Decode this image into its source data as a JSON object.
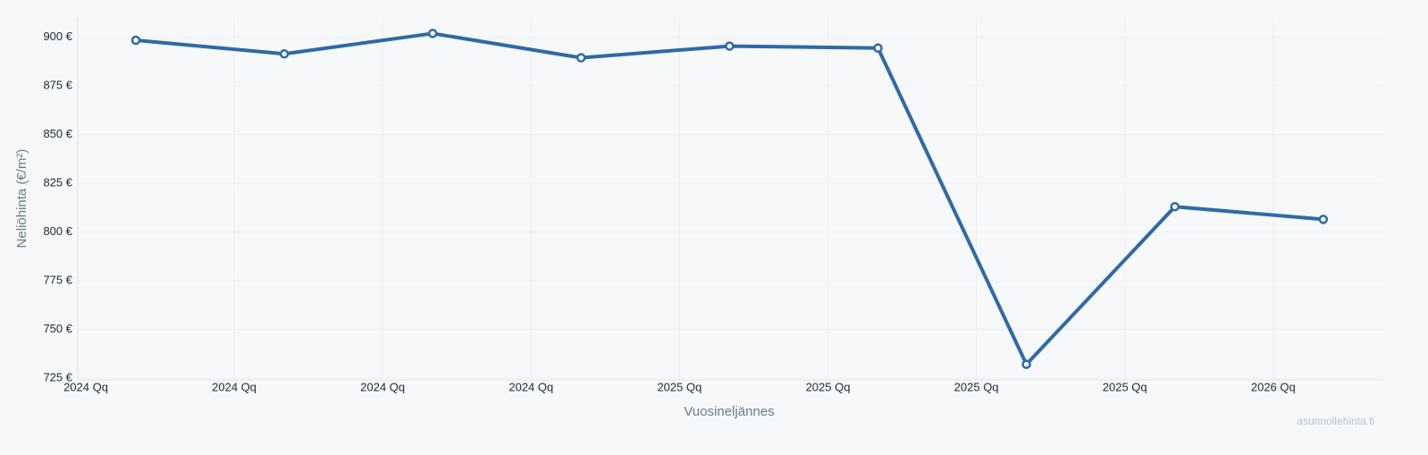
{
  "chart_data": {
    "type": "line",
    "y_label": "Neliöhinta (€/m²)",
    "x_label": "Vuosineljännes",
    "watermark": "asunnollehinta.fi",
    "categories": [
      "2024 Qq",
      "2024 Qq",
      "2024 Qq",
      "2024 Qq",
      "2025 Qq",
      "2025 Qq",
      "2025 Qq",
      "2025 Qq",
      "2026 Qq"
    ],
    "series": [
      {
        "name": "Neliöhinta",
        "color": "#2e6aa6",
        "values": [
          898.5,
          891.5,
          902,
          889.5,
          895.5,
          894.5,
          732,
          813,
          806.5
        ]
      }
    ],
    "ylim": [
      724,
      910
    ],
    "yticks": [
      {
        "value": 725,
        "label": "725 €"
      },
      {
        "value": 750,
        "label": "750 €"
      },
      {
        "value": 775,
        "label": "775 €"
      },
      {
        "value": 800,
        "label": "800 €"
      },
      {
        "value": 825,
        "label": "825 €"
      },
      {
        "value": 850,
        "label": "850 €"
      },
      {
        "value": 875,
        "label": "875 €"
      },
      {
        "value": 900,
        "label": "900 €"
      }
    ],
    "grid": true
  }
}
